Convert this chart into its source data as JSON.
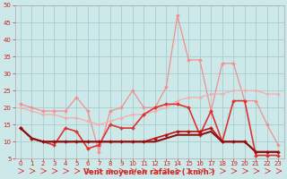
{
  "xlabel": "Vent moyen/en rafales ( km/h )",
  "xlim": [
    -0.5,
    23.5
  ],
  "ylim": [
    5,
    50
  ],
  "yticks": [
    5,
    10,
    15,
    20,
    25,
    30,
    35,
    40,
    45,
    50
  ],
  "xticks": [
    0,
    1,
    2,
    3,
    4,
    5,
    6,
    7,
    8,
    9,
    10,
    11,
    12,
    13,
    14,
    15,
    16,
    17,
    18,
    19,
    20,
    21,
    22,
    23
  ],
  "bg_color": "#cce8e8",
  "grid_color": "#aacccc",
  "series": [
    {
      "x": [
        0,
        1,
        2,
        3,
        4,
        5,
        6,
        7,
        8,
        9,
        10,
        11,
        12,
        13,
        14,
        15,
        16,
        17,
        18,
        19,
        20,
        21,
        22,
        23
      ],
      "y": [
        21,
        20,
        19,
        19,
        19,
        23,
        19,
        7,
        19,
        20,
        25,
        20,
        20,
        26,
        47,
        34,
        34,
        19,
        33,
        33,
        22,
        22,
        15,
        9
      ],
      "color": "#f09090",
      "lw": 0.9,
      "marker": "D",
      "ms": 2.0,
      "zorder": 2
    },
    {
      "x": [
        0,
        1,
        2,
        3,
        4,
        5,
        6,
        7,
        8,
        9,
        10,
        11,
        12,
        13,
        14,
        15,
        16,
        17,
        18,
        19,
        20,
        21,
        22,
        23
      ],
      "y": [
        20,
        19,
        18,
        18,
        17,
        17,
        16,
        15,
        16,
        17,
        18,
        18,
        19,
        20,
        22,
        23,
        23,
        24,
        24,
        25,
        25,
        25,
        24,
        24
      ],
      "color": "#f0b0b0",
      "lw": 0.9,
      "marker": "D",
      "ms": 2.0,
      "zorder": 2
    },
    {
      "x": [
        0,
        1,
        2,
        3,
        4,
        5,
        6,
        7,
        8,
        9,
        10,
        11,
        12,
        13,
        14,
        15,
        16,
        17,
        18,
        19,
        20,
        21,
        22,
        23
      ],
      "y": [
        14,
        11,
        10,
        9,
        14,
        13,
        8,
        9,
        15,
        14,
        14,
        18,
        20,
        21,
        21,
        20,
        12,
        19,
        10,
        22,
        22,
        6,
        6,
        6
      ],
      "color": "#dd3333",
      "lw": 1.2,
      "marker": "D",
      "ms": 2.0,
      "zorder": 3
    },
    {
      "x": [
        0,
        1,
        2,
        3,
        4,
        5,
        6,
        7,
        8,
        9,
        10,
        11,
        12,
        13,
        14,
        15,
        16,
        17,
        18,
        19,
        20,
        21,
        22,
        23
      ],
      "y": [
        14,
        11,
        10,
        10,
        10,
        10,
        10,
        10,
        10,
        10,
        10,
        10,
        11,
        12,
        13,
        13,
        13,
        14,
        10,
        10,
        10,
        7,
        7,
        7
      ],
      "color": "#bb1111",
      "lw": 1.2,
      "marker": "D",
      "ms": 2.0,
      "zorder": 3
    },
    {
      "x": [
        0,
        1,
        2,
        3,
        4,
        5,
        6,
        7,
        8,
        9,
        10,
        11,
        12,
        13,
        14,
        15,
        16,
        17,
        18,
        19,
        20,
        21,
        22,
        23
      ],
      "y": [
        14,
        11,
        10,
        10,
        10,
        10,
        10,
        10,
        10,
        10,
        10,
        10,
        10,
        11,
        12,
        12,
        12,
        13,
        10,
        10,
        10,
        7,
        7,
        7
      ],
      "color": "#881111",
      "lw": 1.5,
      "marker": null,
      "ms": 0,
      "zorder": 3
    }
  ],
  "xlabel_color": "#cc2222",
  "xlabel_fontsize": 6,
  "tick_fontsize": 5,
  "tick_color": "#cc2222"
}
